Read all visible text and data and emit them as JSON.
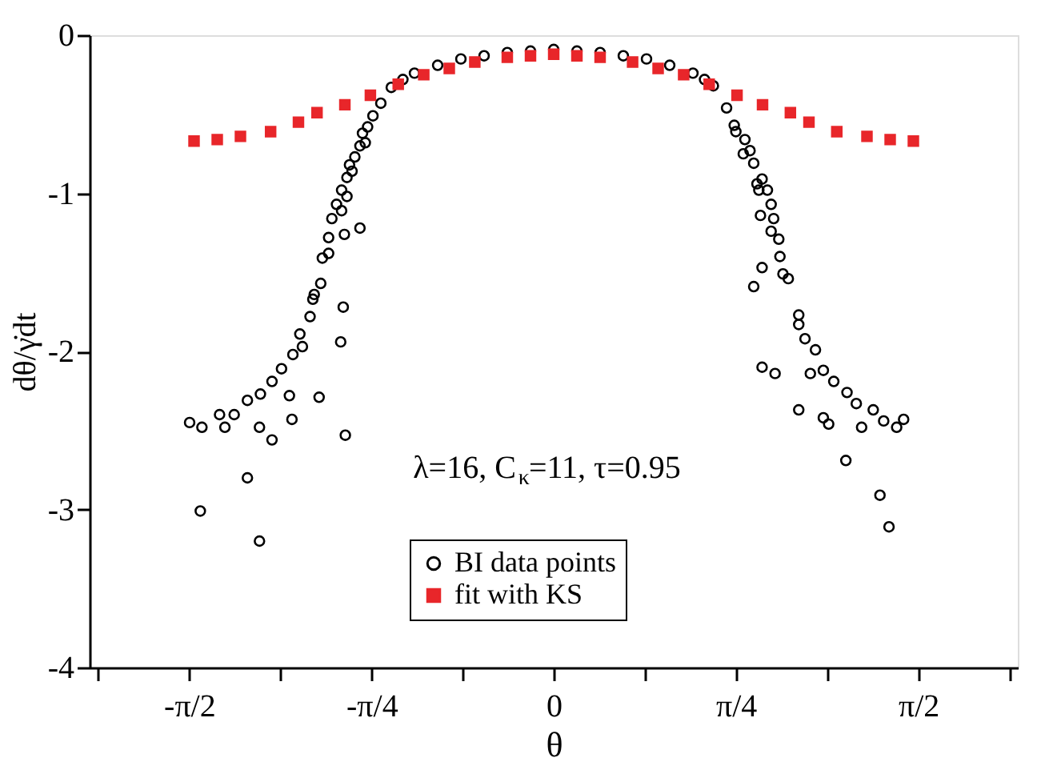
{
  "chart_data": {
    "type": "scatter",
    "xlabel": "θ",
    "ylabel": "dθ/γ̇dt",
    "xlim": [
      -2,
      2
    ],
    "ylim": [
      -4,
      0
    ],
    "xticks": [
      {
        "value": -1.963,
        "label": null
      },
      {
        "value": -1.571,
        "label": "-π/2"
      },
      {
        "value": -1.178,
        "label": null
      },
      {
        "value": -0.785,
        "label": "-π/4"
      },
      {
        "value": -0.393,
        "label": null
      },
      0,
      {
        "value": 0.393,
        "label": null
      },
      {
        "value": 0.785,
        "label": "π/4"
      },
      {
        "value": 1.178,
        "label": null
      },
      {
        "value": 1.571,
        "label": "π/2"
      },
      {
        "value": 1.963,
        "label": null
      }
    ],
    "yticks": [
      0,
      -1,
      -2,
      -3,
      -4
    ],
    "grid": false,
    "legend": "bottom",
    "annotations": [
      "λ=16, C$_{κ}$=11, τ=0.95"
    ],
    "series": [
      {
        "name": "BI data points",
        "color": "#000000",
        "marker": "circle",
        "x": [
          -1.569,
          -1.516,
          -1.523,
          -1.44,
          -1.417,
          -1.377,
          -1.32,
          -1.32,
          -1.268,
          -1.268,
          -1.264,
          -1.214,
          -1.214,
          -1.173,
          -1.139,
          -1.128,
          -1.124,
          -1.083,
          -1.094,
          -1.05,
          -1.038,
          -1.032,
          -1.004,
          -1.011,
          -0.997,
          -0.97,
          -0.97,
          -0.956,
          -0.936,
          -0.914,
          -0.918,
          -0.907,
          -0.902,
          -0.898,
          -0.891,
          -0.914,
          -0.891,
          -0.869,
          -0.88,
          -0.857,
          -0.835,
          -0.835,
          -0.812,
          -0.824,
          -0.802,
          -0.779,
          -0.745,
          -0.7,
          -0.65,
          -0.6,
          -0.5,
          -0.4,
          -0.3,
          -0.2,
          -0.1,
          0,
          0.1,
          0.2,
          0.3,
          0.4,
          0.5,
          0.6,
          0.65,
          0.688,
          0.745,
          0.778,
          0.785,
          0.824,
          0.817,
          0.846,
          0.862,
          0.876,
          0.898,
          0.884,
          0.921,
          0.937,
          0.891,
          0.948,
          0.937,
          0.97,
          0.975,
          0.898,
          0.988,
          1.011,
          0.862,
          1.056,
          1.056,
          1.083,
          1.128,
          0.898,
          0.954,
          1.106,
          1.162,
          1.207,
          1.264,
          1.304,
          1.377,
          1.056,
          1.162,
          1.185,
          1.327,
          1.422,
          1.478,
          1.508,
          1.259,
          1.406,
          1.445
        ],
        "values": [
          -2.45,
          -2.48,
          -3.01,
          -2.4,
          -2.48,
          -2.4,
          -2.31,
          -2.8,
          -2.48,
          -3.2,
          -2.27,
          -2.19,
          -2.56,
          -2.11,
          -2.28,
          -2.43,
          -2.02,
          -1.97,
          -1.89,
          -1.78,
          -1.67,
          -1.64,
          -1.57,
          -2.29,
          -1.41,
          -1.38,
          -1.28,
          -1.16,
          -1.07,
          -1.11,
          -1.94,
          -1.72,
          -1.26,
          -2.53,
          -1.02,
          -0.98,
          -0.9,
          -0.86,
          -0.82,
          -0.77,
          -1.22,
          -0.7,
          -0.68,
          -0.62,
          -0.58,
          -0.51,
          -0.43,
          -0.33,
          -0.28,
          -0.24,
          -0.19,
          -0.15,
          -0.13,
          -0.11,
          -0.1,
          -0.09,
          -0.1,
          -0.11,
          -0.13,
          -0.15,
          -0.19,
          -0.24,
          -0.28,
          -0.32,
          -0.46,
          -0.57,
          -0.61,
          -0.66,
          -0.75,
          -0.73,
          -0.81,
          -0.94,
          -0.91,
          -0.98,
          -0.98,
          -1.07,
          -1.14,
          -1.16,
          -1.24,
          -1.29,
          -1.4,
          -1.47,
          -1.51,
          -1.54,
          -1.59,
          -1.77,
          -1.83,
          -1.92,
          -1.99,
          -2.1,
          -2.14,
          -2.14,
          -2.12,
          -2.19,
          -2.26,
          -2.33,
          -2.37,
          -2.37,
          -2.42,
          -2.46,
          -2.48,
          -2.44,
          -2.48,
          -2.43,
          -2.69,
          -2.91,
          -3.11
        ]
      },
      {
        "name": "fit with KS",
        "color": "#e8262a",
        "marker": "square",
        "x": [
          -1.55,
          -1.45,
          -1.35,
          -1.22,
          -1.1,
          -1.02,
          -0.9,
          -0.79,
          -0.67,
          -0.56,
          -0.45,
          -0.34,
          -0.2,
          -0.1,
          0,
          0.1,
          0.2,
          0.34,
          0.45,
          0.56,
          0.67,
          0.79,
          0.9,
          1.02,
          1.1,
          1.22,
          1.35,
          1.45,
          1.55
        ],
        "values": [
          -0.67,
          -0.66,
          -0.64,
          -0.61,
          -0.55,
          -0.49,
          -0.44,
          -0.38,
          -0.31,
          -0.25,
          -0.21,
          -0.17,
          -0.14,
          -0.13,
          -0.12,
          -0.13,
          -0.14,
          -0.17,
          -0.21,
          -0.25,
          -0.31,
          -0.38,
          -0.44,
          -0.49,
          -0.55,
          -0.61,
          -0.64,
          -0.66,
          -0.67
        ]
      }
    ]
  }
}
